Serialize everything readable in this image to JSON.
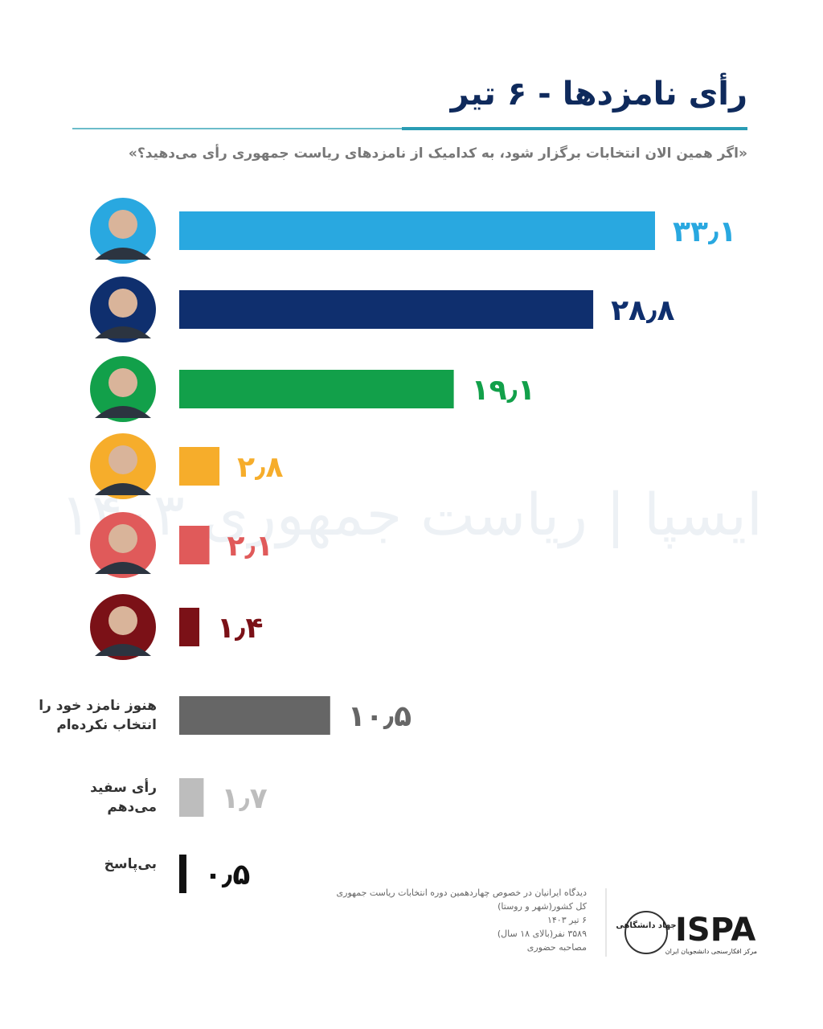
{
  "chart_data": {
    "type": "bar",
    "orientation": "horizontal",
    "title": "رأی نامزدها - ۶ تیر",
    "subtitle": "«اگر همین الان انتخابات برگزار شود، به کدامیک از نامزدهای ریاست جمهوری رأی می‌دهید؟»",
    "categories": [
      null,
      null,
      null,
      null,
      null,
      null,
      "هنوز نامزد خود را انتخاب نکرده‌ام",
      "رأی سفید می‌دهم",
      "بی‌پاسخ"
    ],
    "values": [
      33.1,
      28.8,
      19.1,
      2.8,
      2.1,
      1.4,
      10.5,
      1.7,
      0.5
    ],
    "value_labels": [
      "۳۳٫۱",
      "۲۸٫۸",
      "۱۹٫۱",
      "۲٫۸",
      "۲٫۱",
      "۱٫۴",
      "۱۰٫۵",
      "۱٫۷",
      "۰٫۵"
    ],
    "colors": [
      "#29a8e0",
      "#0f2f6e",
      "#12a04a",
      "#f6ad2b",
      "#e05a5a",
      "#7b1117",
      "#666666",
      "#bdbdbd",
      "#111111"
    ],
    "watermark": "ایسپا | ریاست جمهوری ۱۴۰۳",
    "notes": [
      "دیدگاه ایرانیان در خصوص چهاردهمین دوره انتخابات ریاست جمهوری",
      "کل کشور(شهر و روستا)",
      "۶ تیر ۱۴۰۳",
      "۳۵۸۹ نفر(بالای ۱۸ سال)",
      "مصاحبه حضوری"
    ],
    "logo": {
      "name": "ISPA",
      "org": "مرکز افکارسنجی دانشجویان ایران",
      "emblem": "جهاد دانشگاهی"
    }
  }
}
